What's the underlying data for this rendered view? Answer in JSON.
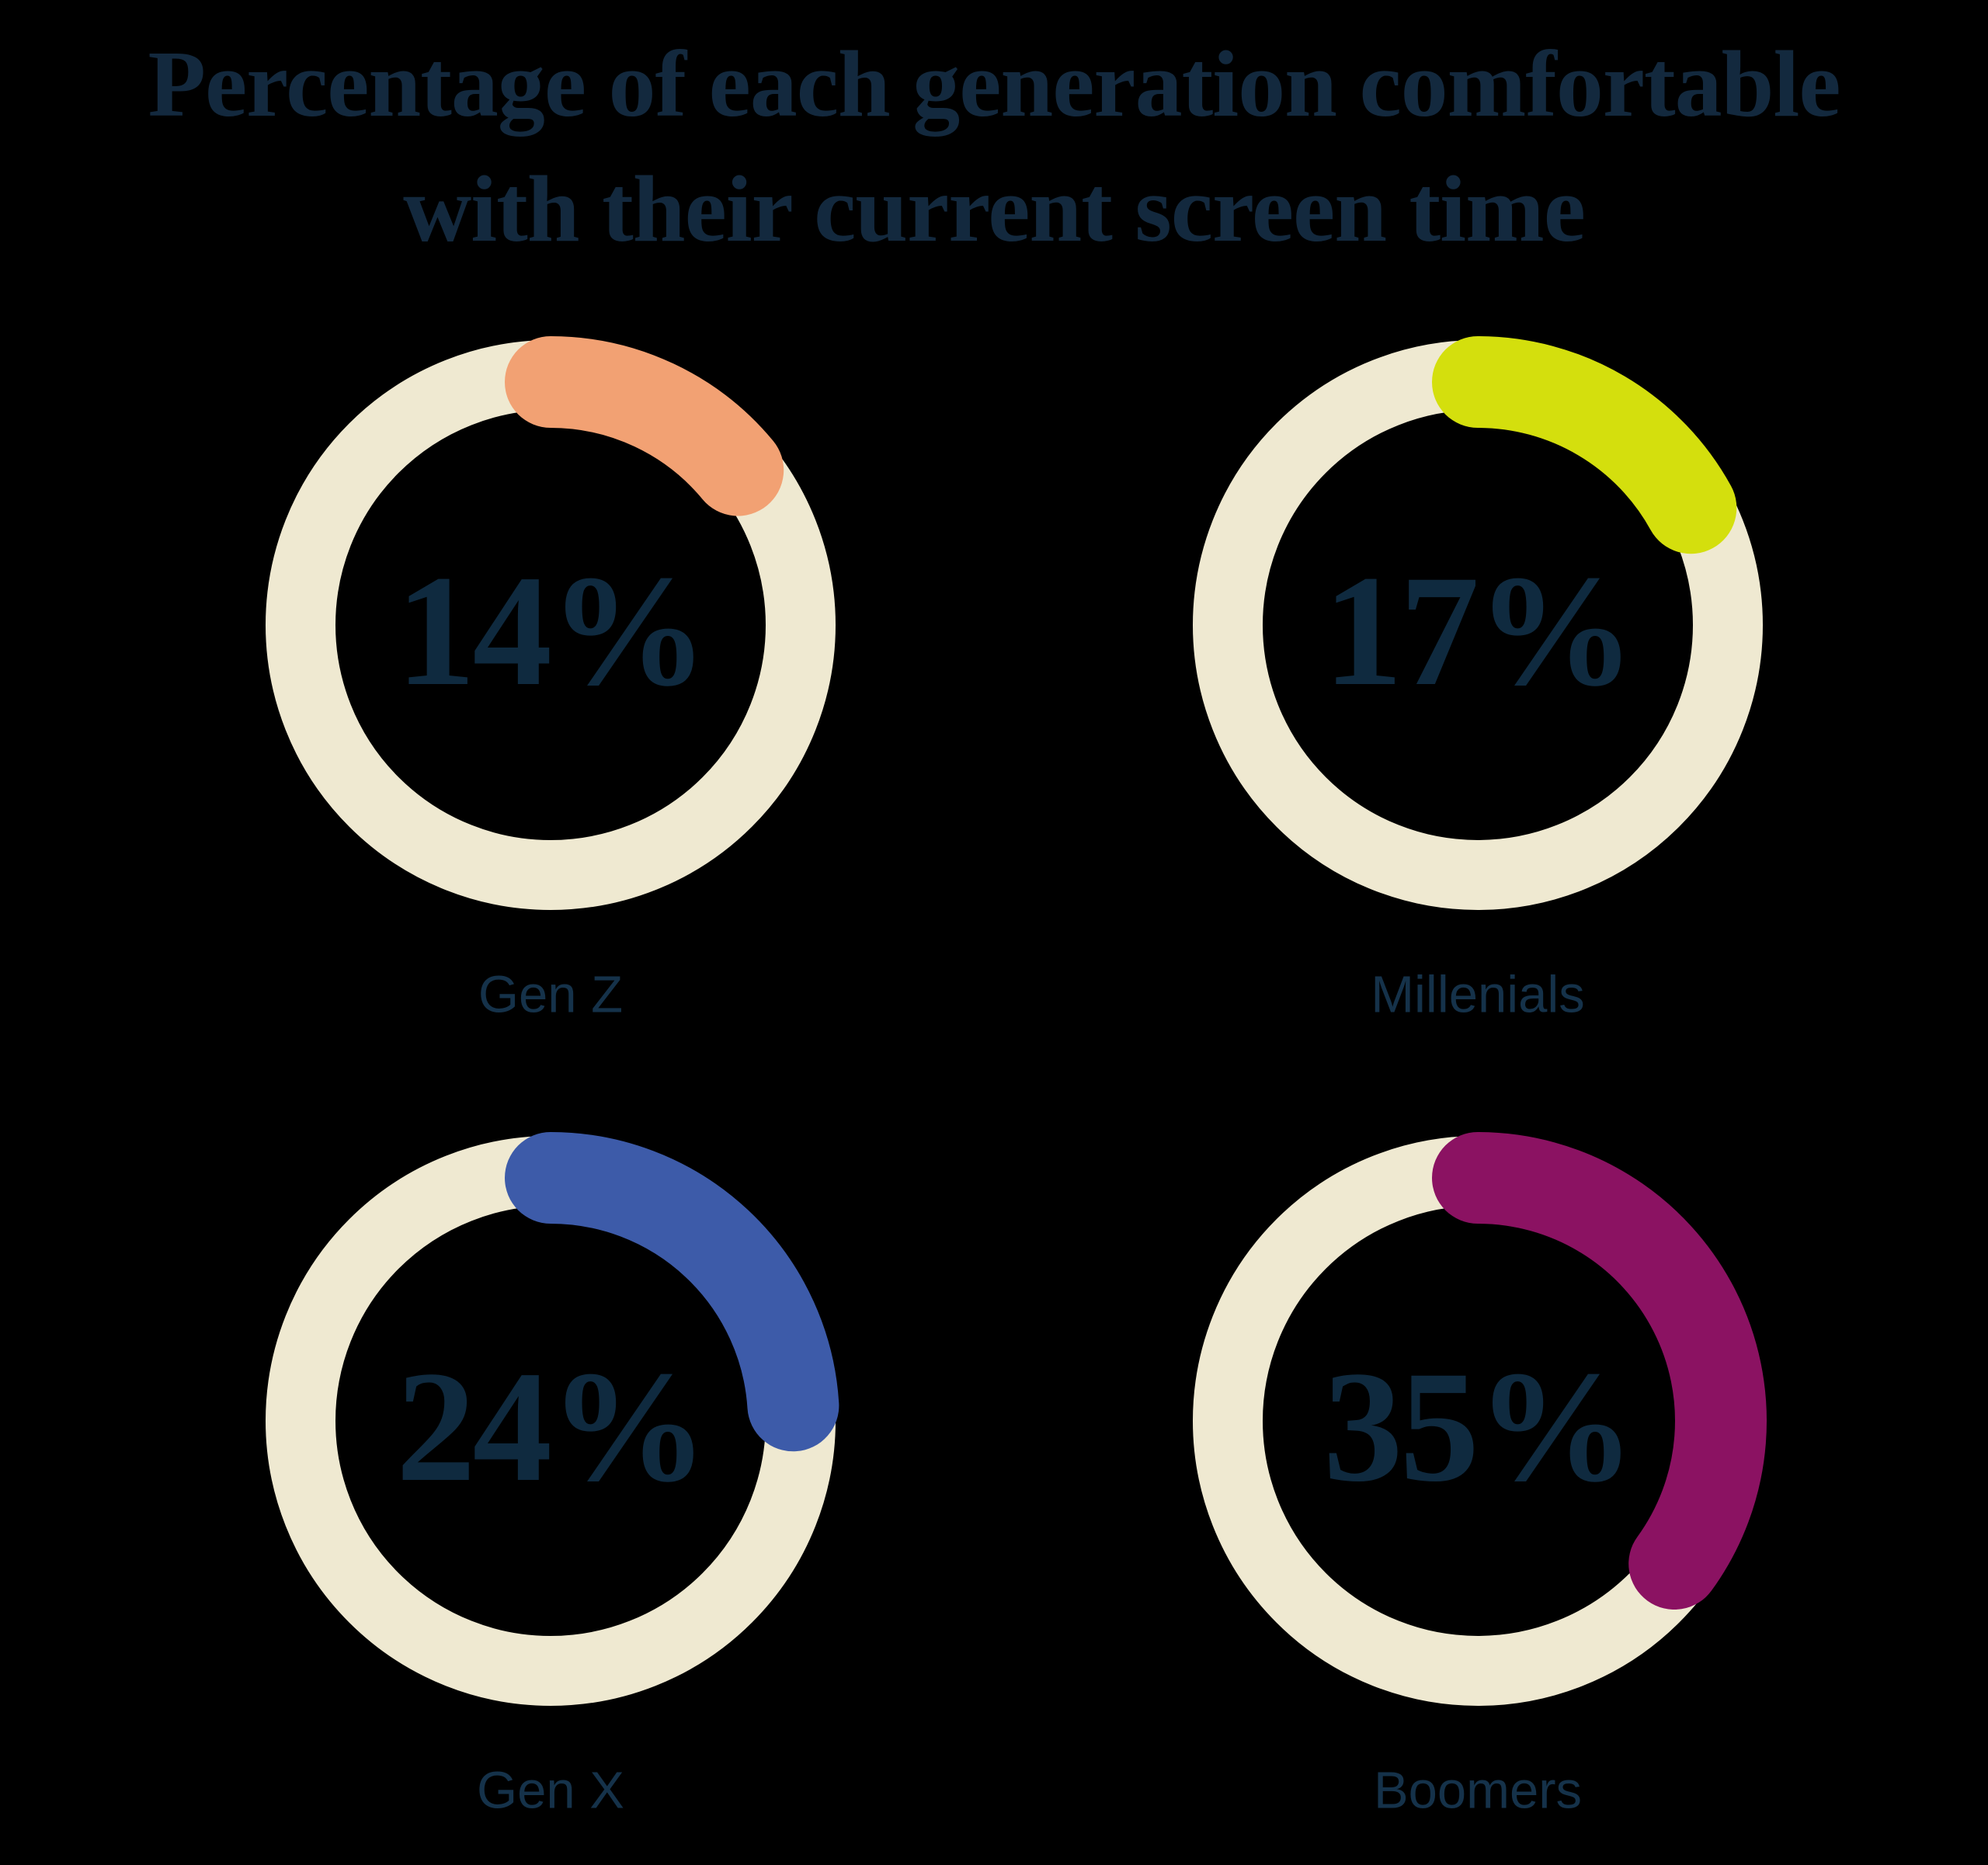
{
  "title": {
    "line1": "Percentage of each generation comfortable",
    "line2": "with their current screen time"
  },
  "colors": {
    "background": "#000000",
    "heading": "#13293E",
    "value_text": "#0F2A3F",
    "label_text": "#15324A"
  },
  "chart_data": {
    "type": "donut",
    "title": "Percentage of each generation comfortable with their current screen time",
    "categories": [
      "Gen Z",
      "Millenials",
      "Gen X",
      "Boomers"
    ],
    "values": [
      14,
      17,
      24,
      35
    ],
    "value_labels": [
      "14%",
      "17%",
      "24%",
      "35%"
    ],
    "unit": "percent",
    "colors": [
      "#F2A173",
      "#D4DF0D",
      "#3D5BA9",
      "#8B1262"
    ],
    "track_color": "#EFE9D1",
    "arc_start": "top",
    "arc_direction": "clockwise",
    "layout": "2x2-grid",
    "legend": "none",
    "grid": "off"
  }
}
